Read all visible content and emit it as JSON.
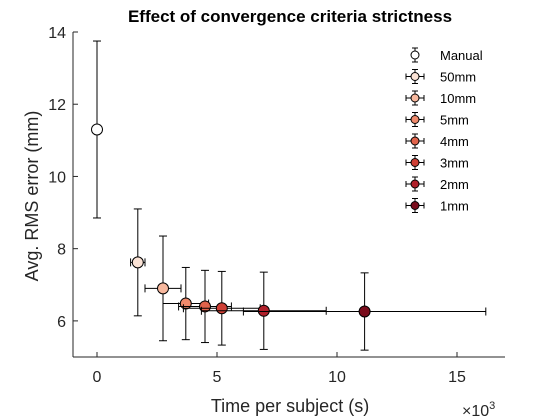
{
  "chart_data": {
    "type": "scatter",
    "title": "Effect of convergence criteria strictness",
    "xlabel": "Time per subject (s)",
    "ylabel": "Avg. RMS error (mm)",
    "x_exponent_prefix": "×10",
    "x_exponent_power": "3",
    "xlim": [
      -1,
      17
    ],
    "ylim": [
      5,
      14
    ],
    "xticks": [
      0,
      5,
      10,
      15
    ],
    "yticks": [
      6,
      8,
      10,
      12,
      14
    ],
    "legend_position": "top-right",
    "grid": false,
    "series": [
      {
        "name": "Manual",
        "x": 0,
        "y": 11.3,
        "xerr": 0,
        "yerr": 2.45,
        "color": "#ffffff"
      },
      {
        "name": "50mm",
        "x": 1.7,
        "y": 7.62,
        "xerr": 0.3,
        "yerr": 1.48,
        "color": "#fbe3d6"
      },
      {
        "name": "10mm",
        "x": 2.75,
        "y": 6.9,
        "xerr": 0.75,
        "yerr": 1.45,
        "color": "#f7b89e"
      },
      {
        "name": "5mm",
        "x": 3.7,
        "y": 6.48,
        "xerr": 0.95,
        "yerr": 1.0,
        "color": "#ef8a6c"
      },
      {
        "name": "4mm",
        "x": 4.5,
        "y": 6.4,
        "xerr": 1.1,
        "yerr": 1.0,
        "color": "#e0634b"
      },
      {
        "name": "3mm",
        "x": 5.2,
        "y": 6.35,
        "xerr": 1.6,
        "yerr": 1.02,
        "color": "#cf4036"
      },
      {
        "name": "2mm",
        "x": 6.95,
        "y": 6.28,
        "xerr": 2.6,
        "yerr": 1.07,
        "color": "#b0202a"
      },
      {
        "name": "1mm",
        "x": 11.15,
        "y": 6.26,
        "xerr": 5.05,
        "yerr": 1.07,
        "color": "#7a0c1c"
      }
    ]
  }
}
